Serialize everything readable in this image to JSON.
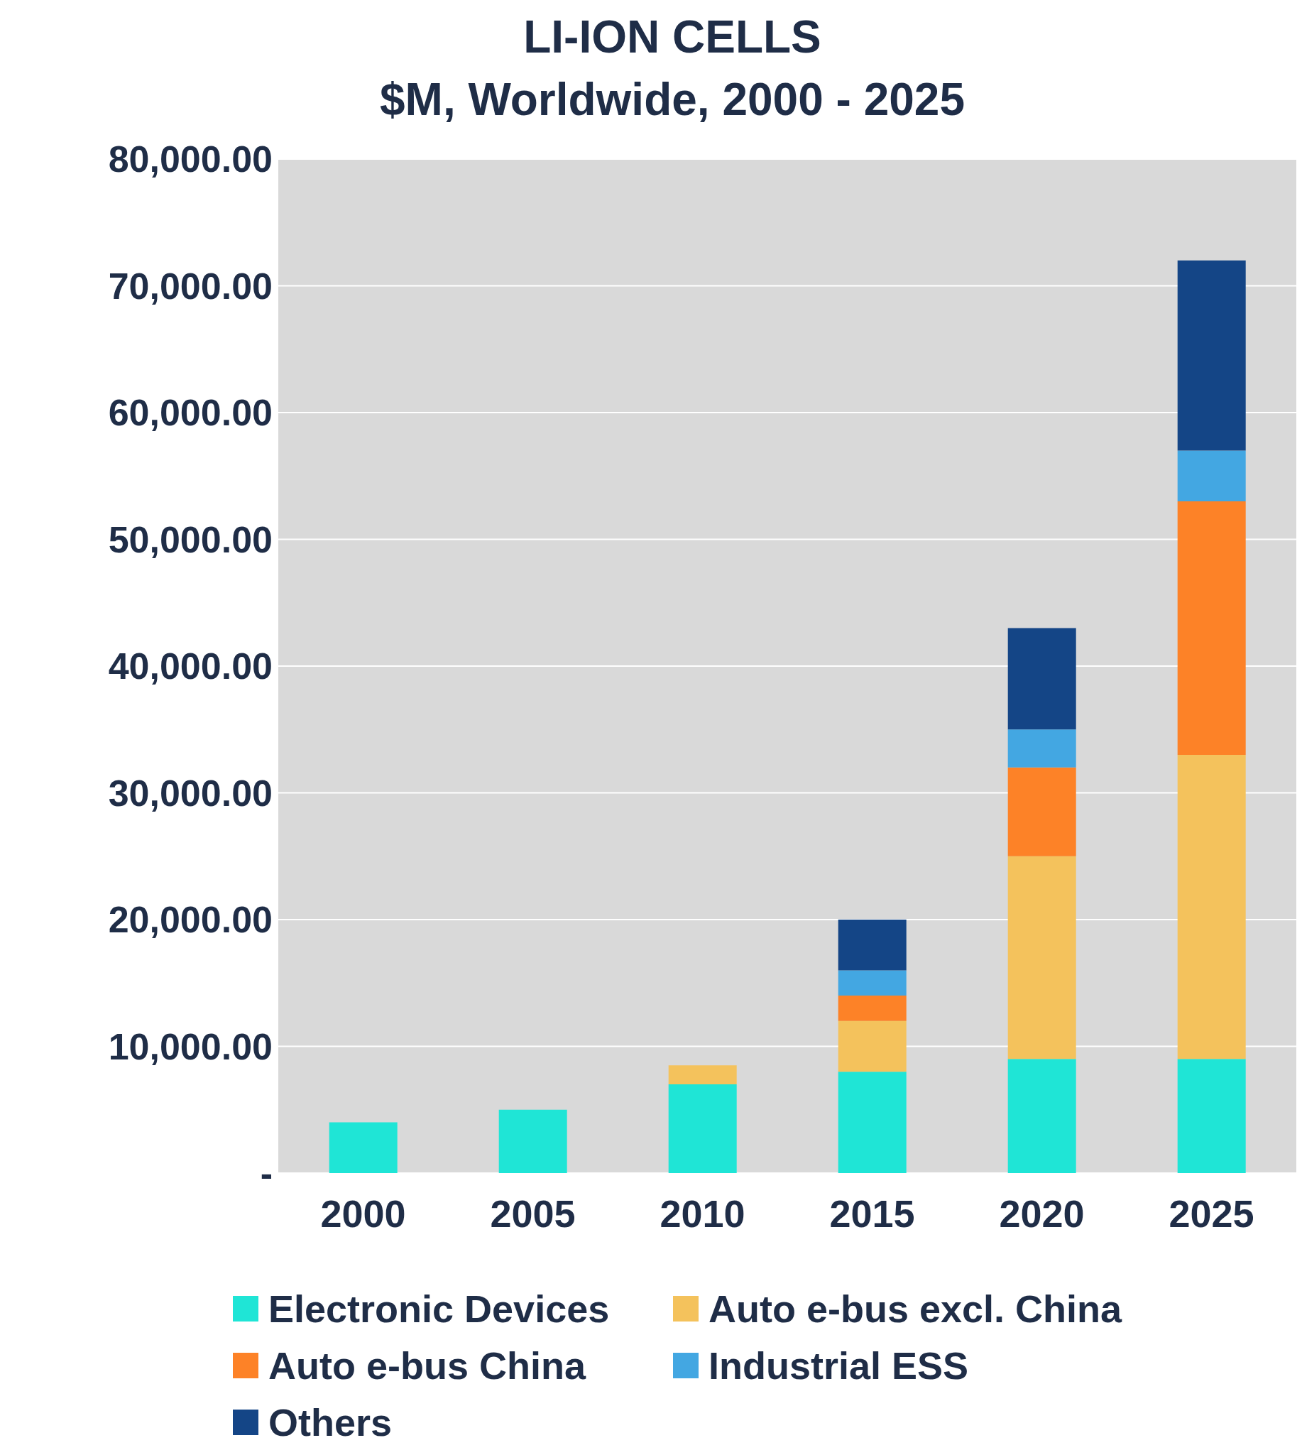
{
  "chart_data": {
    "type": "bar",
    "title": "LI-ION CELLS",
    "subtitle": "$M, Worldwide, 2000 - 2025",
    "categories": [
      "2000",
      "2005",
      "2010",
      "2015",
      "2020",
      "2025"
    ],
    "stacked": true,
    "series": [
      {
        "name": "Electronic Devices",
        "color": "#1fe5d6",
        "values": [
          4000,
          5000,
          7000,
          8000,
          9000,
          9000
        ]
      },
      {
        "name": "Auto e-bus excl. China",
        "color": "#f4c25c",
        "values": [
          null,
          null,
          1500,
          4000,
          16000,
          24000
        ]
      },
      {
        "name": "Auto e-bus China",
        "color": "#fd8227",
        "values": [
          null,
          null,
          null,
          2000,
          7000,
          20000
        ]
      },
      {
        "name": "Industrial ESS",
        "color": "#43a7e2",
        "values": [
          null,
          null,
          null,
          2000,
          3000,
          4000
        ]
      },
      {
        "name": "Others",
        "color": "#144586",
        "values": [
          null,
          null,
          null,
          4000,
          8000,
          15000
        ]
      }
    ],
    "ylim": [
      0,
      80000
    ],
    "yticks": [
      {
        "value": 0,
        "label": "-"
      },
      {
        "value": 10000,
        "label": "10,000.00"
      },
      {
        "value": 20000,
        "label": "20,000.00"
      },
      {
        "value": 30000,
        "label": "30,000.00"
      },
      {
        "value": 40000,
        "label": "40,000.00"
      },
      {
        "value": 50000,
        "label": "50,000.00"
      },
      {
        "value": 60000,
        "label": "60,000.00"
      },
      {
        "value": 70000,
        "label": "70,000.00"
      },
      {
        "value": 80000,
        "label": "80,000.00"
      }
    ],
    "grid": "y",
    "legend": "bottom"
  }
}
